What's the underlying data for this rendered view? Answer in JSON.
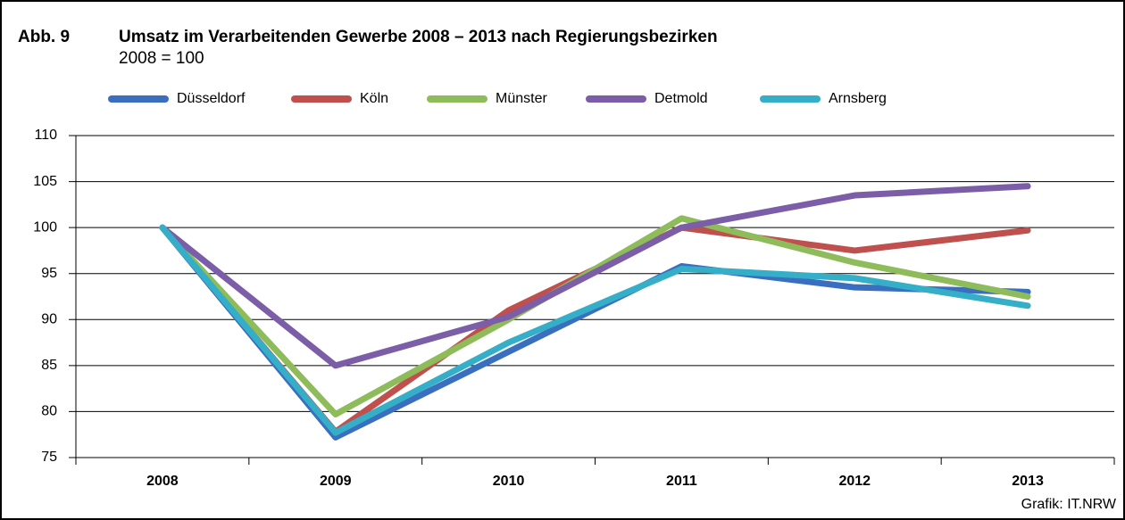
{
  "chart_data": {
    "type": "line",
    "figure_label": "Abb. 9",
    "title": "Umsatz im Verarbeitenden Gewerbe  2008 – 2013 nach Regierungsbezirken",
    "subtitle": "2008 = 100",
    "source": "Grafik: IT.NRW",
    "categories": [
      "2008",
      "2009",
      "2010",
      "2011",
      "2012",
      "2013"
    ],
    "series": [
      {
        "name": "Düsseldorf",
        "color": "#3a6fc0",
        "values": [
          100,
          77.2,
          86.5,
          95.8,
          93.5,
          93.0
        ]
      },
      {
        "name": "Köln",
        "color": "#c0504d",
        "values": [
          100,
          77.8,
          91.0,
          100.0,
          97.5,
          99.7
        ]
      },
      {
        "name": "Münster",
        "color": "#8fbc5a",
        "values": [
          100,
          79.7,
          90.0,
          101.0,
          96.2,
          92.5
        ]
      },
      {
        "name": "Detmold",
        "color": "#7b5ea7",
        "values": [
          100,
          85.0,
          90.3,
          100.0,
          103.5,
          104.5
        ]
      },
      {
        "name": "Arnsberg",
        "color": "#35afc8",
        "values": [
          100,
          77.7,
          87.5,
          95.5,
          94.5,
          91.5
        ]
      }
    ],
    "ylim": [
      75,
      110
    ],
    "yticks": [
      75,
      80,
      85,
      90,
      95,
      100,
      105,
      110
    ],
    "grid": true,
    "legend": "top"
  }
}
